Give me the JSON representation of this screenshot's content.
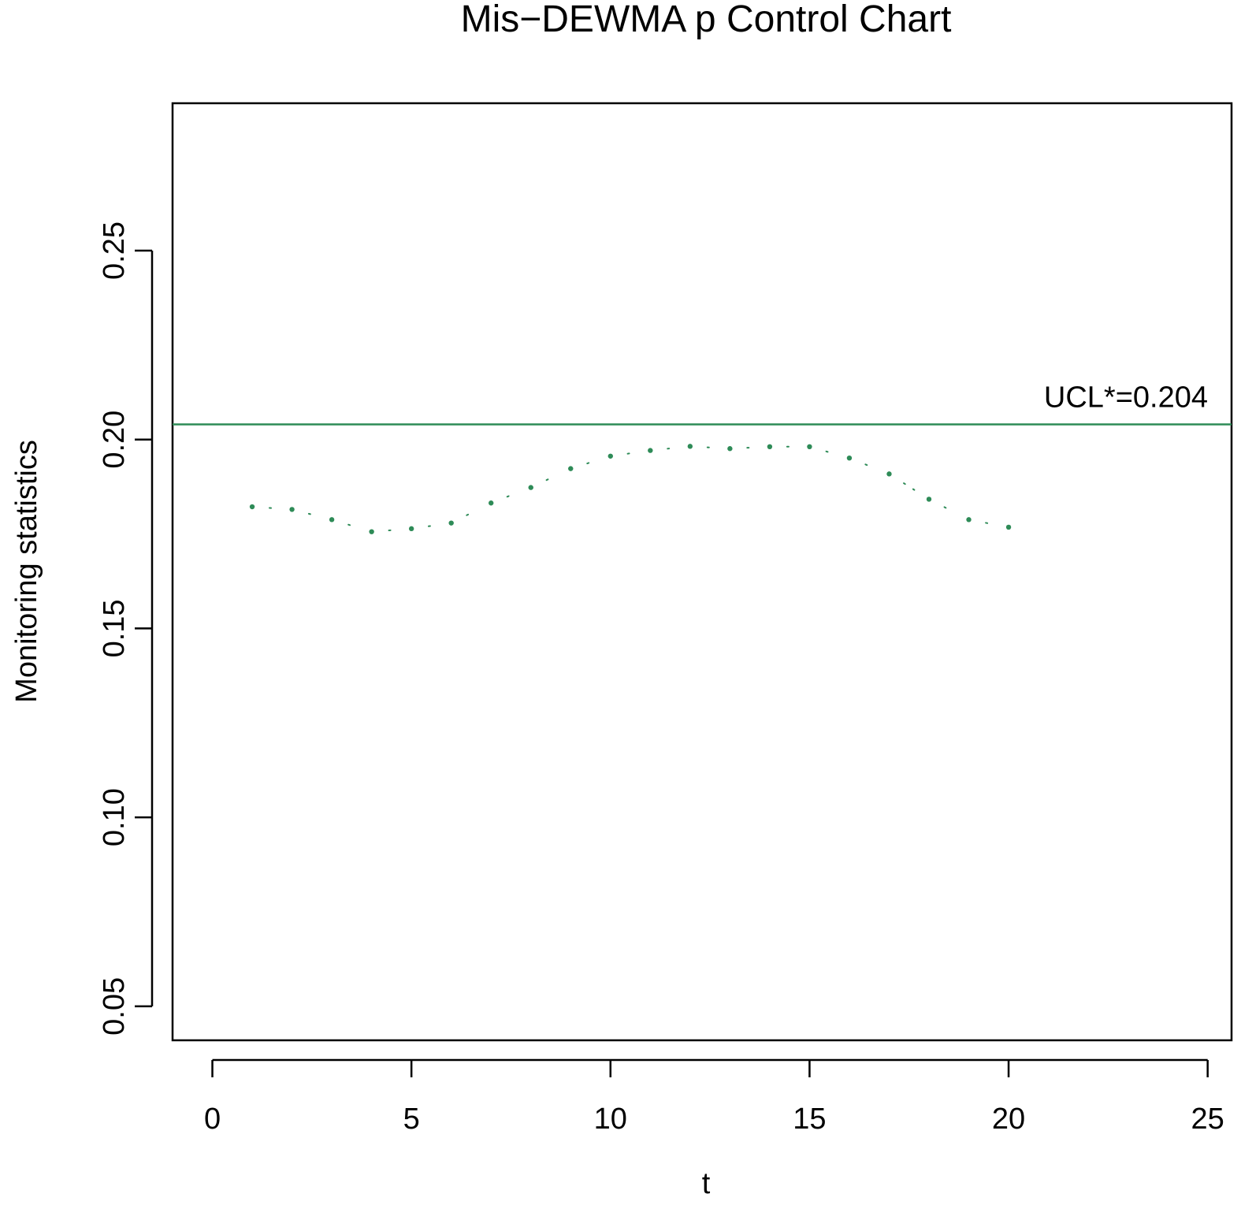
{
  "chart_data": {
    "type": "line",
    "title": "Mis−DEWMA p Control Chart",
    "xlabel": "t",
    "ylabel": "Monitoring statistics",
    "xlim": [
      -1,
      25.6
    ],
    "ylim": [
      0.041,
      0.289
    ],
    "xticks": [
      0,
      5,
      10,
      15,
      20,
      25
    ],
    "yticks": [
      0.05,
      0.1,
      0.15,
      0.2,
      0.25
    ],
    "xtick_labels": [
      "0",
      "5",
      "10",
      "15",
      "20",
      "25"
    ],
    "ytick_labels": [
      "0.05",
      "0.10",
      "0.15",
      "0.20",
      "0.25"
    ],
    "line_style": "dotted",
    "series": [
      {
        "name": "Monitoring statistics",
        "color": "#2e8b57",
        "x": [
          1,
          2,
          3,
          4,
          5,
          6,
          7,
          8,
          9,
          10,
          11,
          12,
          13,
          14,
          15,
          16,
          17,
          18,
          19,
          20
        ],
        "y": [
          0.1822,
          0.1815,
          0.1788,
          0.1756,
          0.1764,
          0.1779,
          0.1832,
          0.1873,
          0.1923,
          0.1956,
          0.1971,
          0.1982,
          0.1976,
          0.1981,
          0.1981,
          0.1951,
          0.1909,
          0.1842,
          0.1788,
          0.1768
        ]
      }
    ],
    "ucl": {
      "value": 0.204,
      "label": "UCL*=0.204",
      "color": "#2e8b57"
    }
  }
}
